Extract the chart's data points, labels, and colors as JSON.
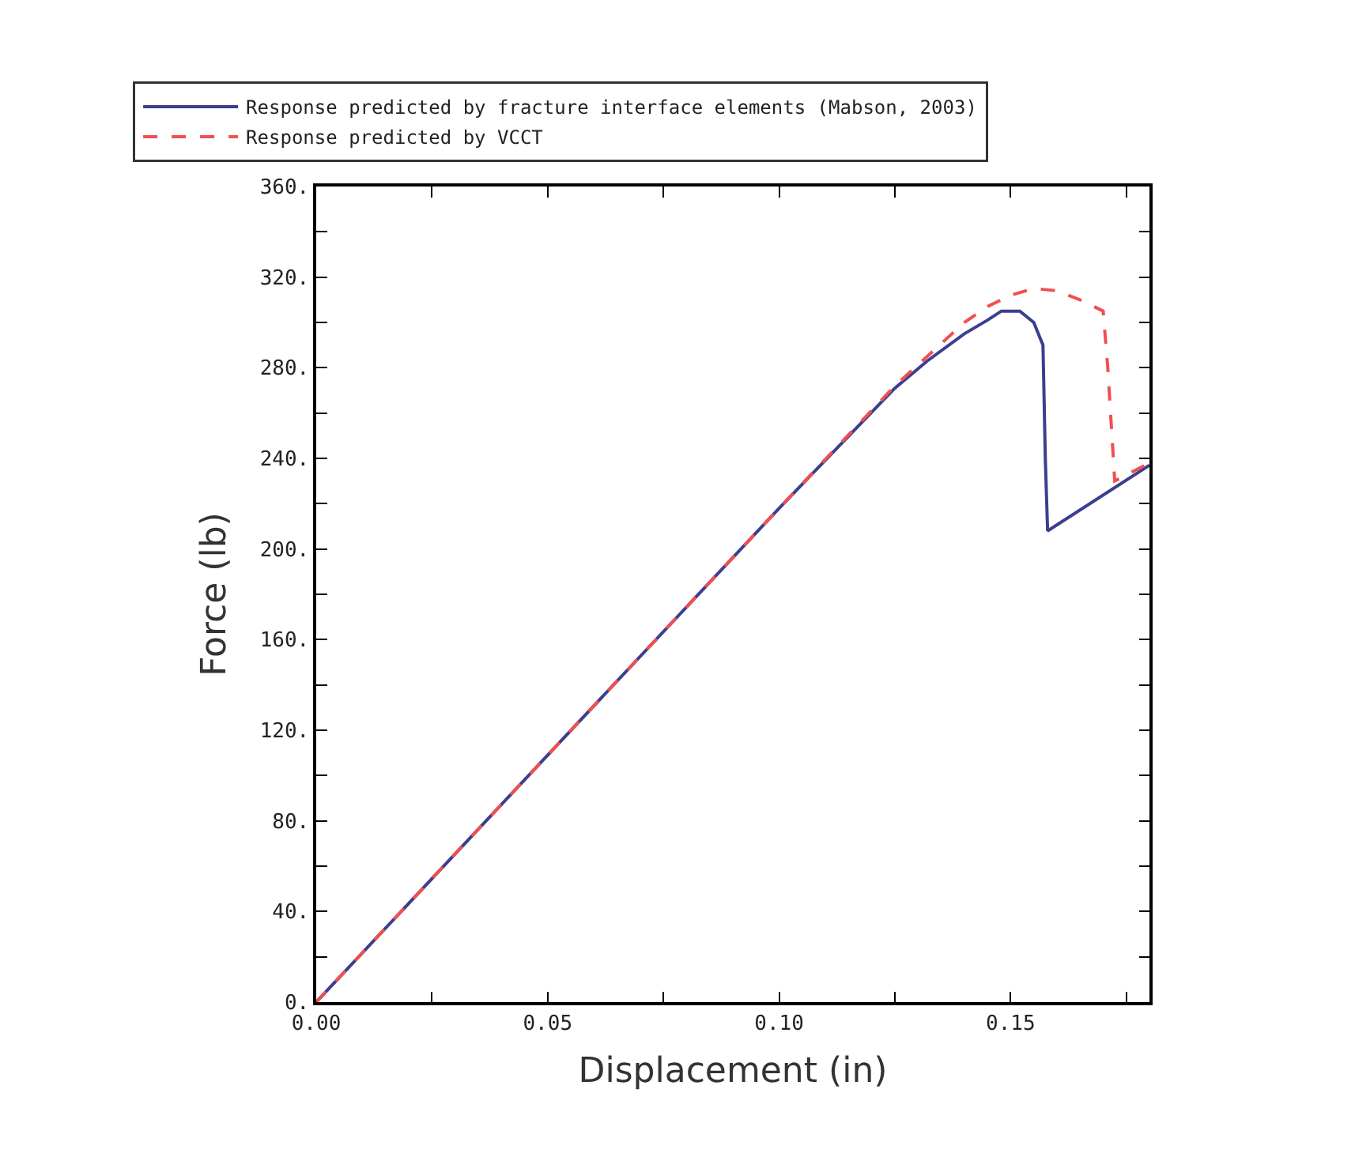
{
  "chart_data": {
    "type": "line",
    "xlabel": "Displacement (in)",
    "ylabel": "Force (lb)",
    "xlim": [
      0,
      0.18
    ],
    "ylim": [
      0,
      360
    ],
    "xticks": [
      {
        "value": 0,
        "label": "0.00"
      },
      {
        "value": 0.025,
        "label": null
      },
      {
        "value": 0.05,
        "label": "0.05"
      },
      {
        "value": 0.075,
        "label": null
      },
      {
        "value": 0.1,
        "label": "0.10"
      },
      {
        "value": 0.125,
        "label": null
      },
      {
        "value": 0.15,
        "label": "0.15"
      },
      {
        "value": 0.175,
        "label": null
      }
    ],
    "yticks": [
      {
        "value": 0,
        "label": "0."
      },
      {
        "value": 20,
        "label": null
      },
      {
        "value": 40,
        "label": "40."
      },
      {
        "value": 60,
        "label": null
      },
      {
        "value": 80,
        "label": "80."
      },
      {
        "value": 100,
        "label": null
      },
      {
        "value": 120,
        "label": "120."
      },
      {
        "value": 140,
        "label": null
      },
      {
        "value": 160,
        "label": "160."
      },
      {
        "value": 180,
        "label": null
      },
      {
        "value": 200,
        "label": "200."
      },
      {
        "value": 220,
        "label": null
      },
      {
        "value": 240,
        "label": "240."
      },
      {
        "value": 260,
        "label": null
      },
      {
        "value": 280,
        "label": "280."
      },
      {
        "value": 300,
        "label": null
      },
      {
        "value": 320,
        "label": "320."
      },
      {
        "value": 340,
        "label": null
      },
      {
        "value": 360,
        "label": "360."
      }
    ],
    "legend": "top",
    "marker": "none",
    "series": [
      {
        "name": "Response predicted by fracture interface elements (Mabson, 2003)",
        "color": "#3a3f8f",
        "line_style": "solid",
        "x": [
          0,
          0.1,
          0.125,
          0.132,
          0.14,
          0.145,
          0.148,
          0.152,
          0.155,
          0.157,
          0.1575,
          0.158,
          0.18
        ],
        "values": [
          0,
          218,
          271,
          283,
          295,
          301,
          305,
          305,
          300,
          290,
          240,
          208,
          237
        ]
      },
      {
        "name": "Response predicted by VCCT",
        "color": "#f05050",
        "line_style": "dashed",
        "x": [
          0,
          0.1,
          0.125,
          0.132,
          0.14,
          0.145,
          0.15,
          0.155,
          0.16,
          0.165,
          0.17,
          0.171,
          0.1725,
          0.18
        ],
        "values": [
          0,
          218,
          272,
          285,
          300,
          307,
          312,
          315,
          314,
          310,
          305,
          280,
          230,
          238
        ]
      }
    ]
  }
}
